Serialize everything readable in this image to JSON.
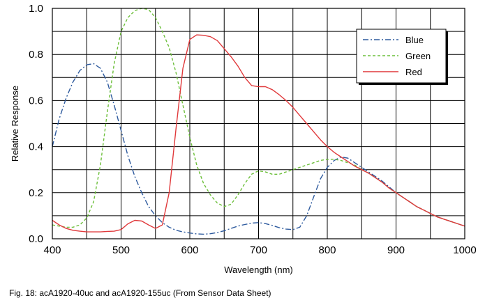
{
  "caption": "Fig. 18: acA1920-40uc and acA1920-155uc (From Sensor Data Sheet)",
  "chart_data": {
    "type": "line",
    "title": "",
    "xlabel": "Wavelength (nm)",
    "ylabel": "Relative Response",
    "xlim": [
      400,
      1000
    ],
    "ylim": [
      0,
      1.0
    ],
    "xticks": [
      400,
      500,
      600,
      700,
      800,
      900,
      1000
    ],
    "xtick_labels": [
      "400",
      "500",
      "600",
      "700",
      "800",
      "900",
      "1000"
    ],
    "yticks": [
      0,
      0.2,
      0.4,
      0.6,
      0.8,
      1.0
    ],
    "ytick_labels": [
      "0.0",
      "0.2",
      "0.4",
      "0.6",
      "0.8",
      "1.0"
    ],
    "grid": true,
    "legend_position": "top-right",
    "series": [
      {
        "name": "Blue",
        "color": "#2d5a9e",
        "dash": "dashdot",
        "points": [
          [
            400,
            0.4
          ],
          [
            410,
            0.52
          ],
          [
            420,
            0.61
          ],
          [
            430,
            0.68
          ],
          [
            440,
            0.73
          ],
          [
            450,
            0.755
          ],
          [
            460,
            0.76
          ],
          [
            470,
            0.74
          ],
          [
            480,
            0.68
          ],
          [
            490,
            0.58
          ],
          [
            500,
            0.47
          ],
          [
            510,
            0.36
          ],
          [
            520,
            0.27
          ],
          [
            530,
            0.2
          ],
          [
            540,
            0.14
          ],
          [
            550,
            0.1
          ],
          [
            560,
            0.07
          ],
          [
            570,
            0.05
          ],
          [
            580,
            0.037
          ],
          [
            590,
            0.03
          ],
          [
            600,
            0.025
          ],
          [
            610,
            0.021
          ],
          [
            620,
            0.02
          ],
          [
            630,
            0.022
          ],
          [
            640,
            0.027
          ],
          [
            650,
            0.035
          ],
          [
            660,
            0.045
          ],
          [
            670,
            0.055
          ],
          [
            680,
            0.062
          ],
          [
            690,
            0.068
          ],
          [
            700,
            0.07
          ],
          [
            710,
            0.066
          ],
          [
            720,
            0.058
          ],
          [
            730,
            0.048
          ],
          [
            740,
            0.042
          ],
          [
            750,
            0.04
          ],
          [
            760,
            0.05
          ],
          [
            770,
            0.1
          ],
          [
            780,
            0.18
          ],
          [
            790,
            0.26
          ],
          [
            800,
            0.31
          ],
          [
            810,
            0.34
          ],
          [
            820,
            0.355
          ],
          [
            830,
            0.35
          ],
          [
            840,
            0.33
          ],
          [
            850,
            0.31
          ],
          [
            860,
            0.29
          ],
          [
            870,
            0.27
          ],
          [
            880,
            0.25
          ],
          [
            890,
            0.225
          ],
          [
            900,
            0.2
          ],
          [
            910,
            0.18
          ],
          [
            920,
            0.16
          ],
          [
            930,
            0.14
          ],
          [
            940,
            0.125
          ],
          [
            950,
            0.11
          ],
          [
            960,
            0.095
          ],
          [
            970,
            0.085
          ],
          [
            980,
            0.075
          ],
          [
            990,
            0.065
          ],
          [
            1000,
            0.055
          ]
        ]
      },
      {
        "name": "Green",
        "color": "#6cbf3a",
        "dash": "dashed",
        "points": [
          [
            400,
            0.06
          ],
          [
            410,
            0.055
          ],
          [
            420,
            0.05
          ],
          [
            430,
            0.05
          ],
          [
            440,
            0.06
          ],
          [
            450,
            0.09
          ],
          [
            460,
            0.16
          ],
          [
            470,
            0.32
          ],
          [
            480,
            0.55
          ],
          [
            490,
            0.76
          ],
          [
            500,
            0.9
          ],
          [
            510,
            0.96
          ],
          [
            520,
            0.99
          ],
          [
            530,
            1.0
          ],
          [
            540,
            0.995
          ],
          [
            550,
            0.96
          ],
          [
            560,
            0.9
          ],
          [
            570,
            0.83
          ],
          [
            580,
            0.72
          ],
          [
            590,
            0.58
          ],
          [
            600,
            0.44
          ],
          [
            610,
            0.32
          ],
          [
            620,
            0.24
          ],
          [
            630,
            0.19
          ],
          [
            640,
            0.155
          ],
          [
            650,
            0.14
          ],
          [
            660,
            0.15
          ],
          [
            670,
            0.19
          ],
          [
            680,
            0.24
          ],
          [
            690,
            0.28
          ],
          [
            700,
            0.295
          ],
          [
            710,
            0.29
          ],
          [
            720,
            0.28
          ],
          [
            730,
            0.28
          ],
          [
            740,
            0.29
          ],
          [
            750,
            0.3
          ],
          [
            760,
            0.31
          ],
          [
            770,
            0.32
          ],
          [
            780,
            0.33
          ],
          [
            790,
            0.34
          ],
          [
            800,
            0.345
          ],
          [
            810,
            0.345
          ],
          [
            820,
            0.34
          ],
          [
            830,
            0.33
          ],
          [
            840,
            0.32
          ],
          [
            850,
            0.3
          ],
          [
            860,
            0.285
          ],
          [
            870,
            0.265
          ],
          [
            880,
            0.245
          ],
          [
            890,
            0.22
          ],
          [
            900,
            0.2
          ],
          [
            910,
            0.18
          ],
          [
            920,
            0.16
          ],
          [
            930,
            0.14
          ],
          [
            940,
            0.125
          ],
          [
            950,
            0.11
          ],
          [
            960,
            0.095
          ],
          [
            970,
            0.085
          ],
          [
            980,
            0.075
          ],
          [
            990,
            0.065
          ],
          [
            1000,
            0.055
          ]
        ]
      },
      {
        "name": "Red",
        "color": "#e0393b",
        "dash": "solid",
        "points": [
          [
            400,
            0.08
          ],
          [
            410,
            0.06
          ],
          [
            420,
            0.045
          ],
          [
            430,
            0.037
          ],
          [
            440,
            0.033
          ],
          [
            450,
            0.03
          ],
          [
            460,
            0.03
          ],
          [
            470,
            0.03
          ],
          [
            480,
            0.032
          ],
          [
            490,
            0.033
          ],
          [
            500,
            0.04
          ],
          [
            510,
            0.065
          ],
          [
            520,
            0.08
          ],
          [
            530,
            0.077
          ],
          [
            540,
            0.06
          ],
          [
            550,
            0.045
          ],
          [
            560,
            0.06
          ],
          [
            570,
            0.2
          ],
          [
            580,
            0.48
          ],
          [
            590,
            0.74
          ],
          [
            600,
            0.865
          ],
          [
            610,
            0.885
          ],
          [
            620,
            0.883
          ],
          [
            630,
            0.877
          ],
          [
            640,
            0.86
          ],
          [
            650,
            0.825
          ],
          [
            660,
            0.79
          ],
          [
            670,
            0.75
          ],
          [
            680,
            0.7
          ],
          [
            690,
            0.665
          ],
          [
            700,
            0.66
          ],
          [
            710,
            0.66
          ],
          [
            720,
            0.647
          ],
          [
            730,
            0.625
          ],
          [
            740,
            0.6
          ],
          [
            750,
            0.57
          ],
          [
            760,
            0.535
          ],
          [
            770,
            0.5
          ],
          [
            780,
            0.465
          ],
          [
            790,
            0.43
          ],
          [
            800,
            0.4
          ],
          [
            810,
            0.375
          ],
          [
            820,
            0.355
          ],
          [
            830,
            0.335
          ],
          [
            840,
            0.315
          ],
          [
            850,
            0.3
          ],
          [
            860,
            0.285
          ],
          [
            870,
            0.265
          ],
          [
            880,
            0.245
          ],
          [
            890,
            0.22
          ],
          [
            900,
            0.2
          ],
          [
            910,
            0.18
          ],
          [
            920,
            0.16
          ],
          [
            930,
            0.14
          ],
          [
            940,
            0.125
          ],
          [
            950,
            0.11
          ],
          [
            960,
            0.095
          ],
          [
            970,
            0.085
          ],
          [
            980,
            0.075
          ],
          [
            990,
            0.065
          ],
          [
            1000,
            0.055
          ]
        ]
      }
    ]
  }
}
